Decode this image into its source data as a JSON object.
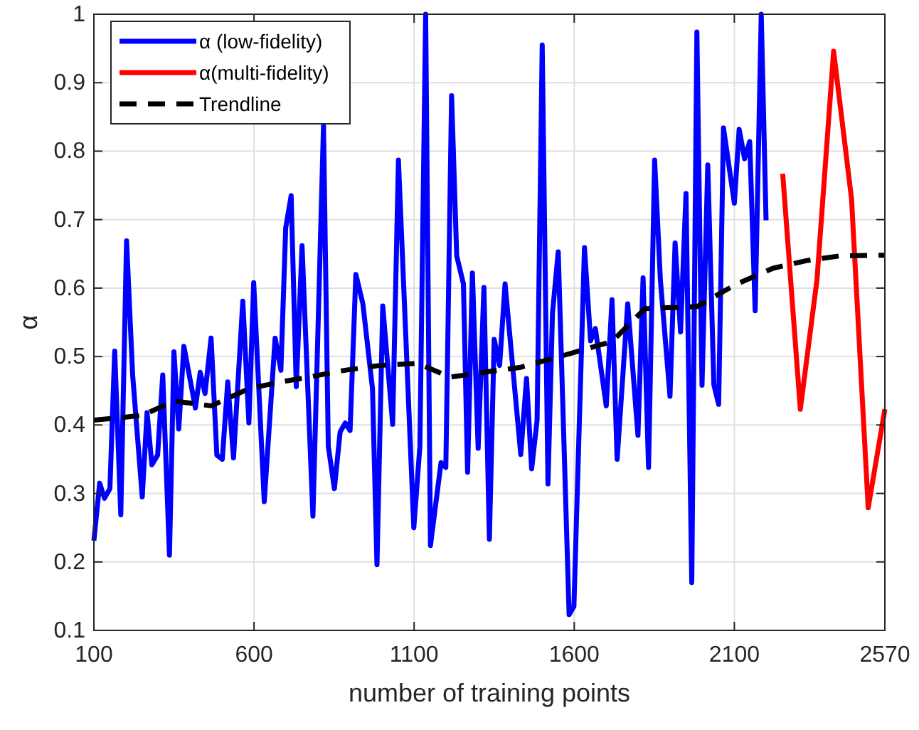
{
  "chart_data": {
    "type": "line",
    "xlabel": "number of training points",
    "ylabel": "α",
    "xlim": [
      100,
      2570
    ],
    "xticks": [
      100,
      600,
      1100,
      1600,
      2100,
      2570
    ],
    "ylim": [
      0.1,
      1
    ],
    "yticks": [
      0.1,
      0.2,
      0.3,
      0.4,
      0.5,
      0.6,
      0.7,
      0.8,
      0.9,
      1
    ],
    "grid": true,
    "legend": "top left",
    "series": [
      {
        "name": "α (low-fidelity)",
        "color": "#0000ff",
        "x": [
          100,
          118,
          133,
          150,
          165,
          184,
          202,
          221,
          251,
          266,
          281,
          299,
          315,
          336,
          350,
          365,
          381,
          417,
          432,
          447,
          466,
          484,
          501,
          518,
          536,
          565,
          584,
          599,
          632,
          666,
          684,
          699,
          716,
          732,
          750,
          784,
          817,
          832,
          851,
          869,
          885,
          900,
          918,
          940,
          970,
          984,
          1002,
          1033,
          1051,
          1099,
          1118,
          1136,
          1151,
          1184,
          1199,
          1217,
          1233,
          1254,
          1267,
          1282,
          1300,
          1318,
          1335,
          1350,
          1367,
          1384,
          1433,
          1451,
          1467,
          1484,
          1500,
          1518,
          1532,
          1550,
          1584,
          1599,
          1632,
          1651,
          1666,
          1700,
          1718,
          1734,
          1767,
          1799,
          1815,
          1832,
          1851,
          1869,
          1899,
          1915,
          1932,
          1949,
          1967,
          1983,
          1999,
          2017,
          2036,
          2051,
          2066,
          2100,
          2115,
          2132,
          2148,
          2165,
          2184,
          2199
        ],
        "values": [
          0.231,
          0.315,
          0.293,
          0.307,
          0.508,
          0.269,
          0.669,
          0.473,
          0.295,
          0.418,
          0.342,
          0.356,
          0.473,
          0.21,
          0.507,
          0.394,
          0.515,
          0.425,
          0.477,
          0.446,
          0.527,
          0.356,
          0.35,
          0.463,
          0.352,
          0.581,
          0.403,
          0.608,
          0.288,
          0.527,
          0.48,
          0.688,
          0.735,
          0.456,
          0.662,
          0.267,
          0.837,
          0.369,
          0.307,
          0.39,
          0.403,
          0.392,
          0.62,
          0.577,
          0.453,
          0.196,
          0.574,
          0.401,
          0.787,
          0.25,
          0.369,
          1,
          0.224,
          0.345,
          0.338,
          0.881,
          0.647,
          0.606,
          0.331,
          0.622,
          0.366,
          0.601,
          0.233,
          0.525,
          0.487,
          0.606,
          0.357,
          0.468,
          0.336,
          0.407,
          0.955,
          0.314,
          0.563,
          0.653,
          0.123,
          0.135,
          0.659,
          0.523,
          0.541,
          0.428,
          0.583,
          0.35,
          0.577,
          0.385,
          0.615,
          0.338,
          0.787,
          0.612,
          0.442,
          0.666,
          0.536,
          0.738,
          0.17,
          0.974,
          0.458,
          0.78,
          0.459,
          0.43,
          0.834,
          0.724,
          0.832,
          0.789,
          0.814,
          0.567,
          1,
          0.699
        ]
      },
      {
        "name": "α(multi-fidelity)",
        "color": "#ff0000",
        "x": [
          2251,
          2306,
          2358,
          2410,
          2466,
          2518,
          2570
        ],
        "values": [
          0.767,
          0.423,
          0.612,
          0.946,
          0.73,
          0.279,
          0.423
        ]
      },
      {
        "name": "Trendline",
        "color": "#000000",
        "line_style": "dashed",
        "x": [
          100,
          251,
          350,
          466,
          584,
          684,
          760,
          884,
          992,
          1110,
          1214,
          1318,
          1429,
          1540,
          1718,
          1821,
          1984,
          2103,
          2221,
          2325,
          2429,
          2570
        ],
        "values": [
          0.407,
          0.414,
          0.435,
          0.428,
          0.453,
          0.463,
          0.469,
          0.48,
          0.487,
          0.49,
          0.47,
          0.477,
          0.484,
          0.498,
          0.522,
          0.57,
          0.573,
          0.605,
          0.629,
          0.64,
          0.647,
          0.648
        ]
      }
    ]
  }
}
